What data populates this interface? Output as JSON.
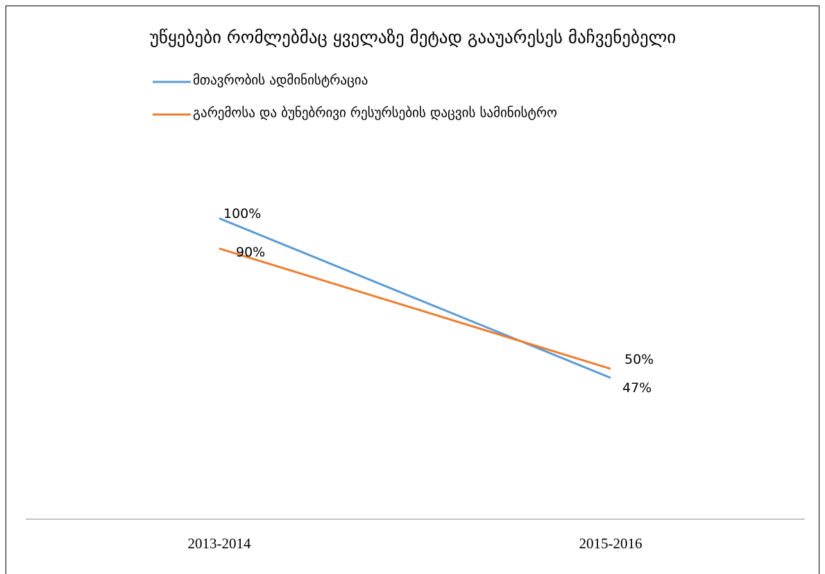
{
  "chart_data": {
    "type": "line",
    "title": "უწყებები რომლებმაც ყველაზე მეტად გააუარესეს მაჩვენებელი",
    "categories": [
      "2013-2014",
      "2015-2016"
    ],
    "series": [
      {
        "name": "მთავრობის ადმინისტრაცია",
        "color": "#5b9bd5",
        "values": [
          100,
          47
        ],
        "value_labels": [
          "100%",
          "47%"
        ]
      },
      {
        "name": "გარემოსა და ბუნებრივი რესურსების დაცვის სამინისტრო",
        "color": "#ed7d31",
        "values": [
          90,
          50
        ],
        "value_labels": [
          "90%",
          "50%"
        ]
      }
    ],
    "ylim": [
      0,
      120
    ],
    "legend": "top"
  }
}
